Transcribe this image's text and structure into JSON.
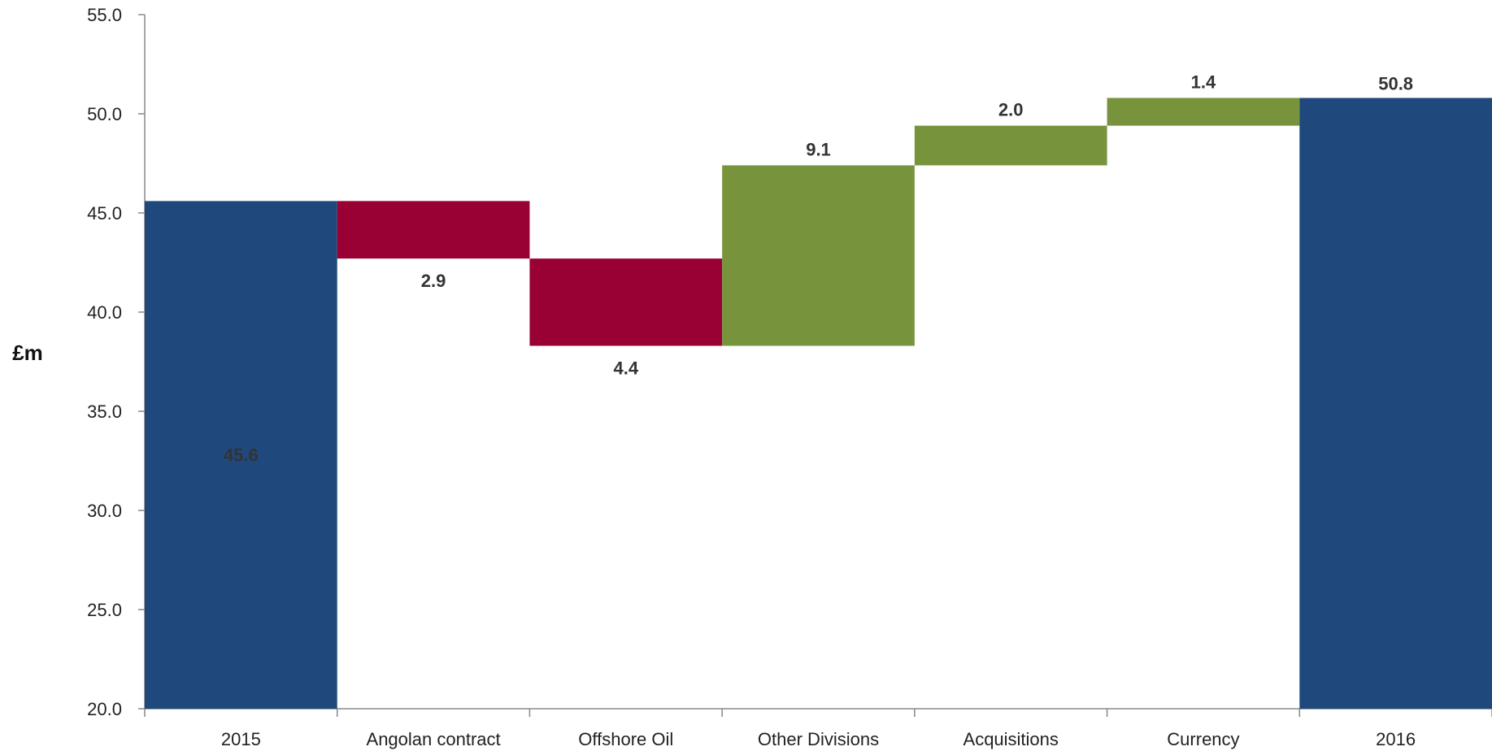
{
  "chart_data": {
    "type": "bar",
    "subtype": "waterfall",
    "title": "",
    "xlabel": "",
    "ylabel": "£m",
    "ylim": [
      20.0,
      55.0
    ],
    "yticks": [
      "20.0",
      "25.0",
      "30.0",
      "35.0",
      "40.0",
      "45.0",
      "50.0",
      "55.0"
    ],
    "grid": false,
    "legend": "none",
    "categories": [
      "2015",
      "Angolan contract",
      "Offshore Oil",
      "Other Divisions",
      "Acquisitions",
      "Currency",
      "2016"
    ],
    "bars": [
      {
        "category": "2015",
        "kind": "total",
        "start": 20.0,
        "end": 45.6,
        "label": "45.6"
      },
      {
        "category": "Angolan contract",
        "kind": "decrease",
        "start": 45.6,
        "end": 42.7,
        "label": "2.9"
      },
      {
        "category": "Offshore Oil",
        "kind": "decrease",
        "start": 42.7,
        "end": 38.3,
        "label": "4.4"
      },
      {
        "category": "Other Divisions",
        "kind": "increase",
        "start": 38.3,
        "end": 47.4,
        "label": "9.1"
      },
      {
        "category": "Acquisitions",
        "kind": "increase",
        "start": 47.4,
        "end": 49.4,
        "label": "2.0"
      },
      {
        "category": "Currency",
        "kind": "increase",
        "start": 49.4,
        "end": 50.8,
        "label": "1.4"
      },
      {
        "category": "2016",
        "kind": "total",
        "start": 20.0,
        "end": 50.8,
        "label": "50.8"
      }
    ],
    "colors": {
      "total": "#1f497d",
      "decrease": "#990033",
      "increase": "#77933c"
    }
  }
}
